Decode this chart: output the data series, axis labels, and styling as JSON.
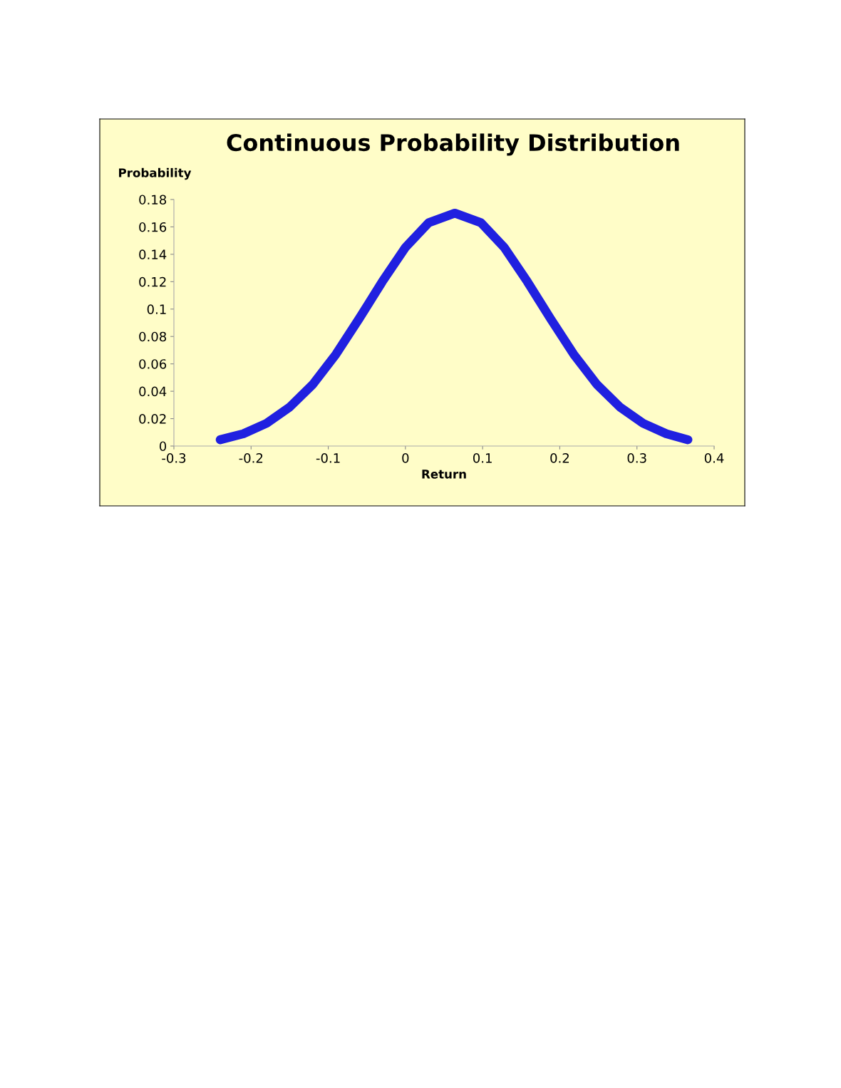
{
  "chart_data": {
    "type": "line",
    "title": "Continuous Probability Distribution",
    "xlabel": "Return",
    "ylabel": "Probability",
    "x": [
      -0.24,
      -0.21,
      -0.18,
      -0.15,
      -0.12,
      -0.09,
      -0.06,
      -0.03,
      0,
      0.03,
      0.064,
      0.098,
      0.128,
      0.158,
      0.188,
      0.218,
      0.248,
      0.278,
      0.308,
      0.338,
      0.366
    ],
    "series": [
      {
        "color": "#2020e0",
        "values": [
          0.0046,
          0.009,
          0.0166,
          0.0284,
          0.045,
          0.067,
          0.093,
          0.12,
          0.145,
          0.163,
          0.17,
          0.163,
          0.145,
          0.12,
          0.093,
          0.067,
          0.045,
          0.0284,
          0.0166,
          0.009,
          0.0046
        ]
      }
    ],
    "xlim": [
      -0.3,
      0.4
    ],
    "xticks": [
      -0.3,
      -0.2,
      -0.1,
      0,
      0.1,
      0.2,
      0.3,
      0.4
    ],
    "ylim": [
      0,
      0.18
    ],
    "yticks": [
      0,
      0.02,
      0.04,
      0.06,
      0.08,
      0.1,
      0.12,
      0.14,
      0.16,
      0.18
    ],
    "grid": false,
    "legend": false,
    "line_style": "solid"
  }
}
